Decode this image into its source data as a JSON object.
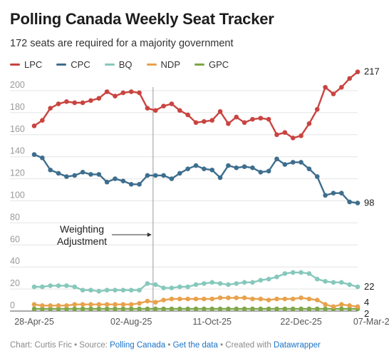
{
  "title": "Polling Canada Weekly Seat Tracker",
  "subtitle": "172 seats are required for a majority government",
  "footer": {
    "prefix": "Chart: Curtis Fric • Source: ",
    "source": "Polling Canada",
    "sep1": " • ",
    "get_data": "Get the data",
    "sep2": " • Created with ",
    "tool": "Datawrapper"
  },
  "chart_data": {
    "type": "line",
    "ylim": [
      0,
      220
    ],
    "yticks": [
      0,
      20,
      40,
      60,
      80,
      100,
      120,
      140,
      160,
      180,
      200
    ],
    "ytick_labels": [
      "0",
      "20",
      "40",
      "60",
      "80",
      "100",
      "120",
      "140",
      "160",
      "180",
      "200"
    ],
    "xtick_labels": [
      "28-Apr-25",
      "02-Aug-25",
      "11-Oct-25",
      "22-Dec-25",
      "07-Mar-26"
    ],
    "xtick_index": [
      0,
      12,
      22,
      33,
      42
    ],
    "grid": true,
    "legend": "top-left",
    "annotation": {
      "lines": [
        "Weighting",
        "Adjustment"
      ],
      "x_index": 14.7
    },
    "series": [
      {
        "name": "LPC",
        "color": "#c94440",
        "end_label": "217",
        "values": [
          168,
          173,
          184,
          188,
          190,
          189,
          189,
          191,
          193,
          199,
          195,
          198,
          199,
          198,
          184,
          182,
          186,
          188,
          182,
          178,
          171,
          172,
          173,
          181,
          170,
          176,
          171,
          174,
          175,
          174,
          160,
          162,
          157,
          159,
          170,
          183,
          203,
          197,
          203,
          211,
          217
        ]
      },
      {
        "name": "CPC",
        "color": "#3e6e8e",
        "end_label": "98",
        "values": [
          142,
          139,
          128,
          125,
          122,
          123,
          126,
          124,
          124,
          117,
          120,
          118,
          115,
          115,
          123,
          123,
          123,
          120,
          125,
          129,
          132,
          129,
          128,
          121,
          132,
          130,
          131,
          130,
          126,
          127,
          138,
          133,
          135,
          135,
          129,
          122,
          105,
          107,
          107,
          99,
          98
        ]
      },
      {
        "name": "BQ",
        "color": "#86c8bc",
        "end_label": "22",
        "values": [
          22,
          22,
          23,
          23,
          23,
          22,
          19,
          19,
          18,
          19,
          19,
          19,
          19,
          19,
          25,
          24,
          21,
          21,
          22,
          22,
          24,
          25,
          26,
          25,
          24,
          25,
          26,
          26,
          28,
          29,
          31,
          34,
          35,
          35,
          34,
          29,
          27,
          26,
          26,
          24,
          22
        ]
      },
      {
        "name": "NDP",
        "color": "#e8a24c",
        "end_label": "4",
        "values": [
          6,
          5,
          5,
          5,
          5,
          6,
          6,
          6,
          6,
          6,
          6,
          6,
          6,
          7,
          9,
          8,
          10,
          11,
          11,
          11,
          11,
          11,
          11,
          12,
          12,
          12,
          12,
          11,
          11,
          10,
          11,
          11,
          11,
          12,
          11,
          10,
          6,
          4,
          6,
          5,
          4
        ]
      },
      {
        "name": "GPC",
        "color": "#7ea64a",
        "end_label": "2",
        "values": [
          2,
          2,
          2,
          2,
          2,
          2,
          2,
          2,
          2,
          2,
          2,
          2,
          2,
          2,
          2,
          2,
          2,
          2,
          2,
          2,
          2,
          2,
          2,
          2,
          2,
          2,
          2,
          2,
          2,
          2,
          2,
          2,
          2,
          2,
          2,
          2,
          2,
          2,
          2,
          2,
          2
        ]
      }
    ]
  }
}
